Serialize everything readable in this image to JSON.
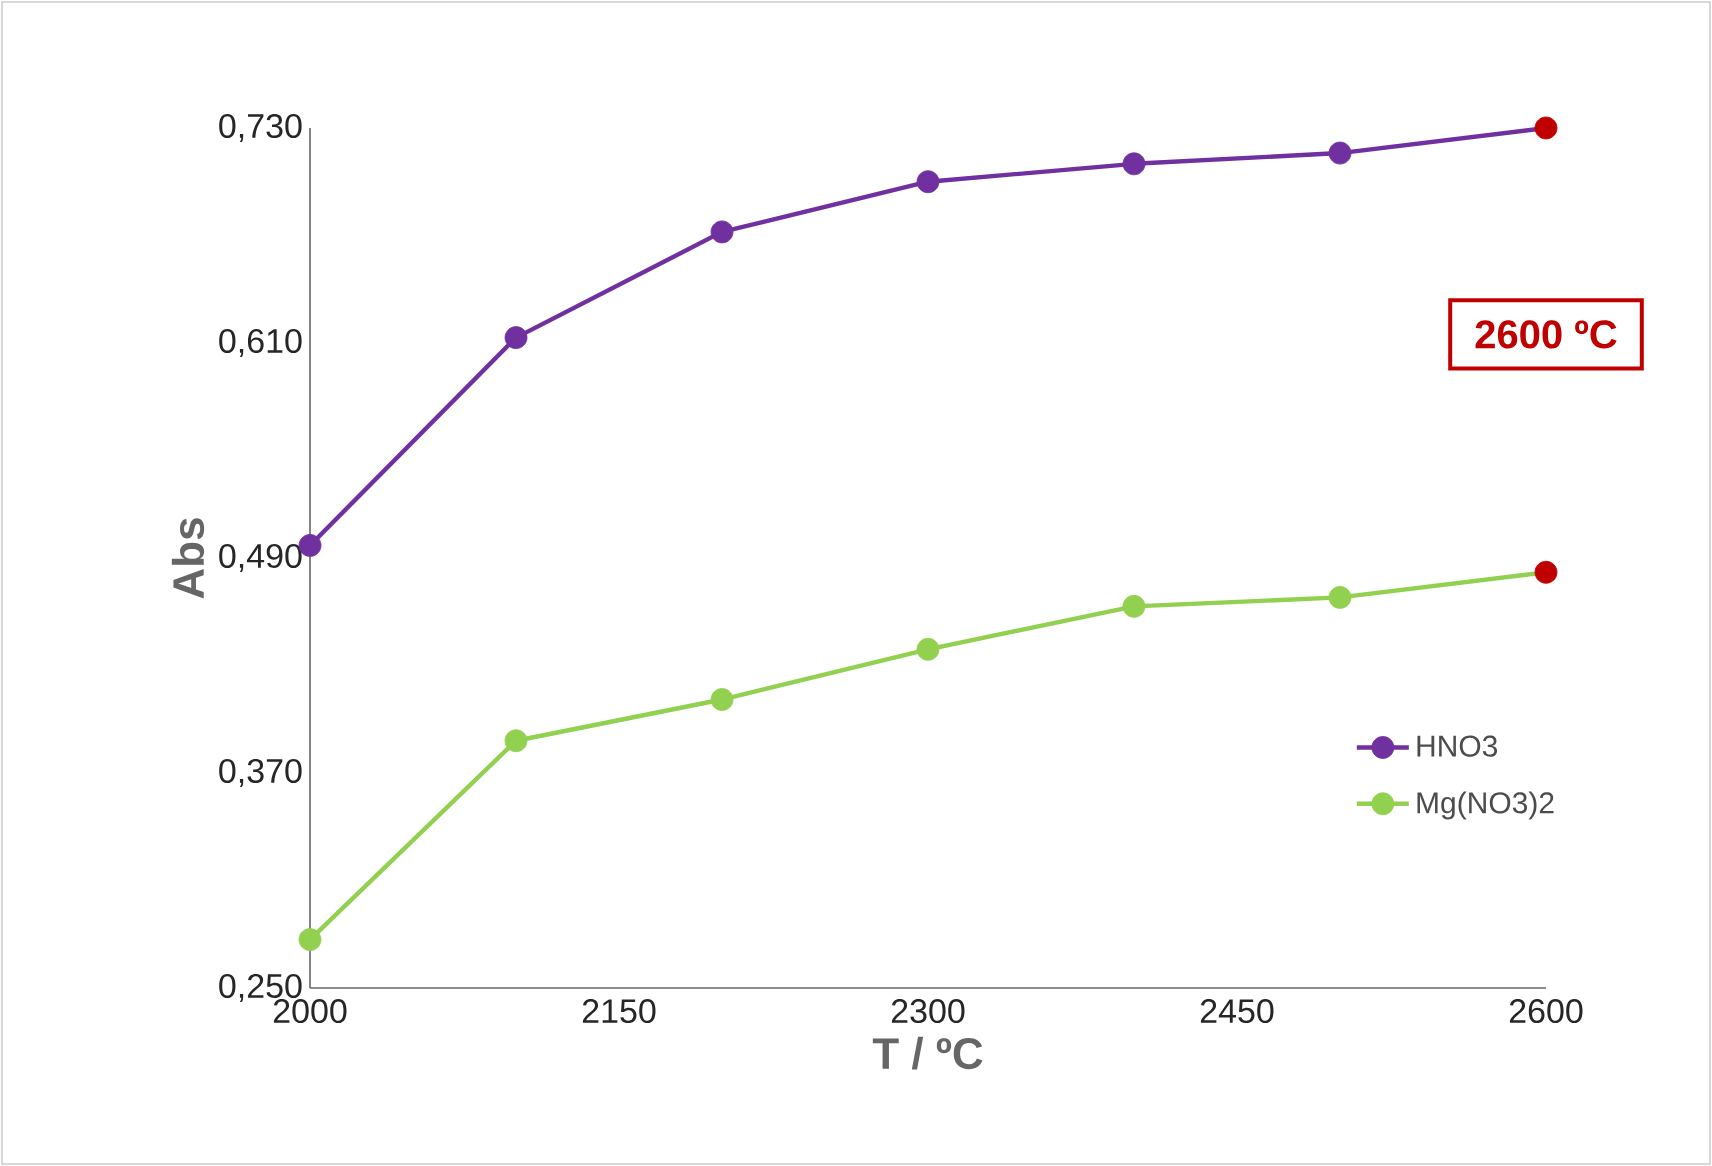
{
  "chart_data": {
    "type": "line",
    "xlabel": "T / ºC",
    "ylabel": "Abs",
    "x": [
      2000,
      2100,
      2200,
      2300,
      2400,
      2500,
      2600
    ],
    "xlim": [
      2000,
      2600
    ],
    "xticks": [
      2000,
      2150,
      2300,
      2450,
      2600
    ],
    "ylim": [
      0.25,
      0.73
    ],
    "yticks": [
      {
        "value": 0.25,
        "label": "0,250"
      },
      {
        "value": 0.37,
        "label": "0,370"
      },
      {
        "value": 0.49,
        "label": "0,490"
      },
      {
        "value": 0.61,
        "label": "0,610"
      },
      {
        "value": 0.73,
        "label": "0,730"
      }
    ],
    "series": [
      {
        "name": "HNO3",
        "color": "#7030a0",
        "values": [
          0.497,
          0.613,
          0.672,
          0.7,
          0.71,
          0.716,
          0.73
        ],
        "colors": [
          "#7030a0",
          "#7030a0",
          "#7030a0",
          "#7030a0",
          "#7030a0",
          "#7030a0",
          "#c00000"
        ]
      },
      {
        "name": "Mg(NO3)2",
        "color": "#92d050",
        "values": [
          0.277,
          0.388,
          0.411,
          0.439,
          0.463,
          0.468,
          0.482
        ],
        "colors": [
          "#92d050",
          "#92d050",
          "#92d050",
          "#92d050",
          "#92d050",
          "#92d050",
          "#c00000"
        ]
      }
    ],
    "annotations": [
      "2600 ºC"
    ],
    "marker": "circle",
    "legend": "right",
    "grid": false
  }
}
